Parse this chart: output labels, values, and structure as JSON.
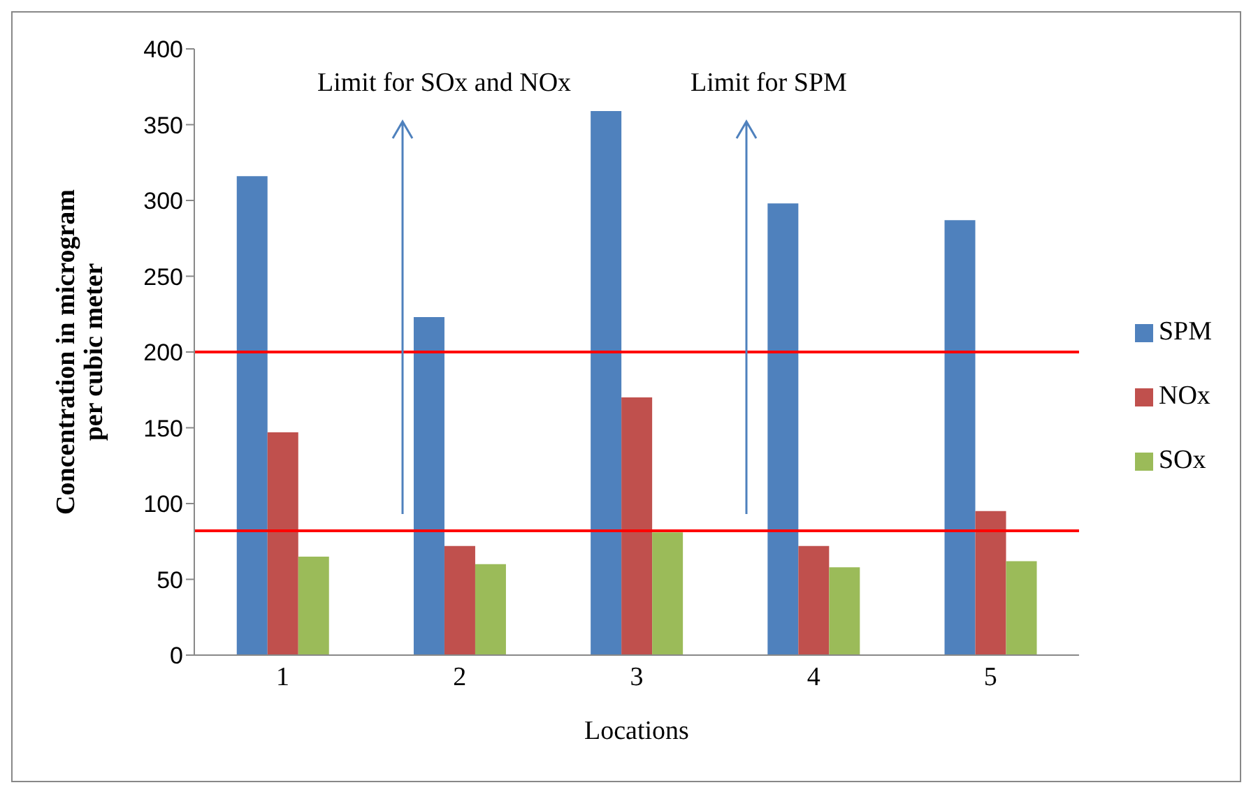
{
  "chart_data": {
    "type": "bar",
    "xlabel": "Locations",
    "ylabel": "Concentration in microgram per cubic meter",
    "categories": [
      "1",
      "2",
      "3",
      "4",
      "5"
    ],
    "series": [
      {
        "name": "SPM",
        "color": "#4f81bd",
        "values": [
          316,
          223,
          359,
          298,
          287
        ]
      },
      {
        "name": "NOx",
        "color": "#c0504d",
        "values": [
          147,
          72,
          170,
          72,
          95
        ]
      },
      {
        "name": "SOx",
        "color": "#9bbb59",
        "values": [
          65,
          60,
          81,
          58,
          62
        ]
      }
    ],
    "ylim": [
      0,
      400
    ],
    "yticks": [
      0,
      50,
      100,
      150,
      200,
      250,
      300,
      350,
      400
    ],
    "ref_lines": [
      {
        "axis": "y",
        "value": 200,
        "color": "#ff0000"
      },
      {
        "axis": "y",
        "value": 82,
        "color": "#ff0000"
      }
    ],
    "annotations": [
      "Limit for SOx and NOx",
      "Limit for SPM"
    ],
    "legend": "right",
    "grid": false
  }
}
